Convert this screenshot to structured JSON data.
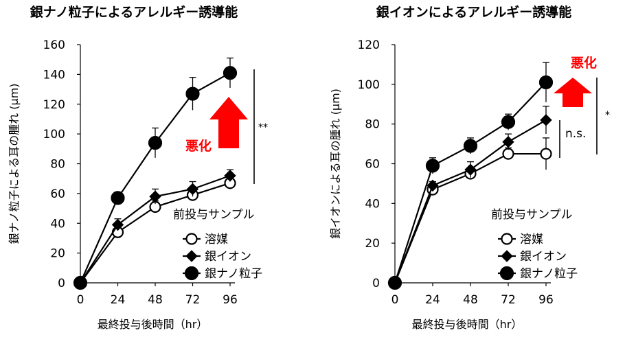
{
  "chart_data": [
    {
      "type": "line",
      "title": "銀ナノ粒子によるアレルギー誘導能",
      "xlabel": "最終投与後時間（hr）",
      "ylabel": "銀ナノ粒子による耳の腫れ (µm)",
      "categories": [
        0,
        24,
        48,
        72,
        96
      ],
      "ylim": [
        0,
        160
      ],
      "yticks": [
        0,
        20,
        40,
        60,
        80,
        100,
        120,
        140,
        160
      ],
      "legend_title": "前投与サンプル",
      "series": [
        {
          "name": "溶媒",
          "marker": "open-circle",
          "values": [
            0,
            34,
            51,
            59,
            67
          ],
          "errors": [
            0,
            3,
            4,
            4,
            4
          ]
        },
        {
          "name": "銀イオン",
          "marker": "diamond",
          "values": [
            0,
            39,
            58,
            63,
            72
          ],
          "errors": [
            0,
            4,
            5,
            5,
            4
          ]
        },
        {
          "name": "銀ナノ粒子",
          "marker": "filled-circle",
          "values": [
            0,
            57,
            94,
            127,
            141
          ],
          "errors": [
            0,
            4,
            10,
            11,
            10
          ]
        }
      ],
      "annotations": {
        "effect_label": "悪化",
        "significance": "**"
      }
    },
    {
      "type": "line",
      "title": "銀イオンによるアレルギー誘導能",
      "xlabel": "最終投与後時間（hr）",
      "ylabel": "銀イオンによる耳の腫れ (µm)",
      "categories": [
        0,
        24,
        48,
        72,
        96
      ],
      "ylim": [
        0,
        120
      ],
      "yticks": [
        0,
        20,
        40,
        60,
        80,
        100,
        120
      ],
      "legend_title": "前投与サンプル",
      "series": [
        {
          "name": "溶媒",
          "marker": "open-circle",
          "values": [
            0,
            47,
            55,
            65,
            65
          ],
          "errors": [
            0,
            2,
            3,
            3,
            8
          ]
        },
        {
          "name": "銀イオン",
          "marker": "diamond",
          "values": [
            0,
            49,
            57,
            71,
            82
          ],
          "errors": [
            0,
            2,
            4,
            4,
            7
          ]
        },
        {
          "name": "銀ナノ粒子",
          "marker": "filled-circle",
          "values": [
            0,
            59,
            69,
            81,
            101
          ],
          "errors": [
            0,
            4,
            4,
            4,
            10
          ]
        }
      ],
      "annotations": {
        "effect_label": "悪化",
        "significance": "*",
        "ns_label": "n.s."
      }
    }
  ]
}
